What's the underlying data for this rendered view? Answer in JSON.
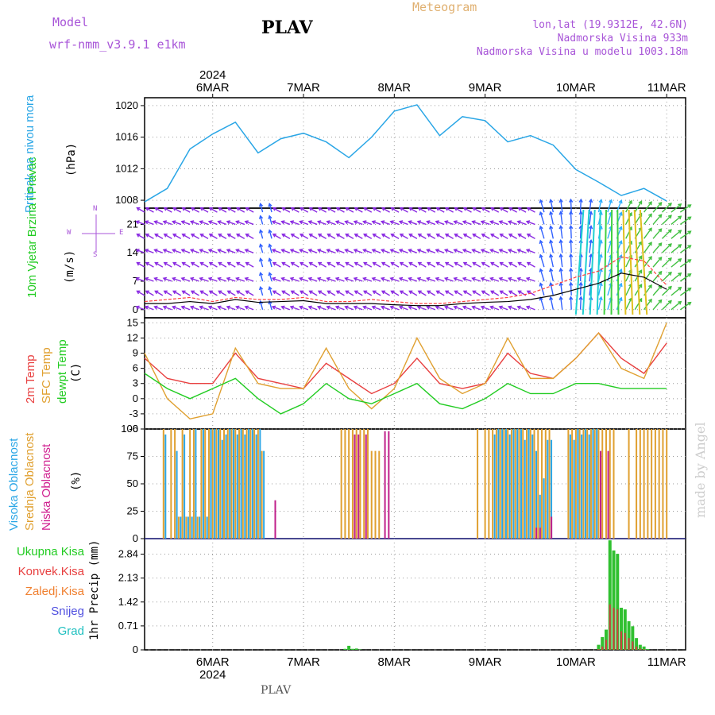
{
  "header": {
    "model_label": "Model",
    "model_name": "wrf-nmm_v3.9.1 e1km",
    "station": "PLAV",
    "product": "Meteogram",
    "coords": "lon,lat (19.9312E, 42.6N)",
    "elevation": "Nadmorska Visina 933m",
    "model_elevation": "Nadmorska Visina u modelu 1003.18m"
  },
  "x_axis": {
    "year": "2024",
    "dates": [
      "6MAR",
      "7MAR",
      "8MAR",
      "9MAR",
      "10MAR",
      "11MAR"
    ]
  },
  "footer": {
    "station": "PLAV",
    "watermark": "made by Angel"
  },
  "colors": {
    "pressure": "#2aa6e6",
    "t2m": "#e84040",
    "sfc": "#e0a030",
    "dew": "#22cc22",
    "wind_arrow": "#8a2be2"
  },
  "chart_data": [
    {
      "type": "line",
      "panel": "pressure",
      "ylabel": "Pritisak na nivou mora",
      "unit": "(hPa)",
      "yticks": [
        "1008",
        "1012",
        "1016",
        "1020"
      ],
      "ylim": [
        1007,
        1021
      ],
      "x_hours": [
        0,
        6,
        12,
        18,
        24,
        30,
        36,
        42,
        48,
        54,
        60,
        66,
        72,
        78,
        84,
        90,
        96,
        102,
        108,
        114,
        120,
        126,
        132,
        138
      ],
      "series": [
        {
          "values": [
            1007.8,
            1009.5,
            1014.5,
            1016.4,
            1017.9,
            1014.0,
            1015.8,
            1016.5,
            1015.4,
            1013.4,
            1016.0,
            1019.3,
            1020.1,
            1016.2,
            1018.6,
            1018.1,
            1015.4,
            1016.2,
            1015.0,
            1011.9,
            1010.3,
            1008.6,
            1009.5,
            1007.9
          ]
        }
      ]
    },
    {
      "type": "line",
      "panel": "wind",
      "ylabel": "10m Vjetar Brzina i Pravac",
      "unit": "(m/s)",
      "compass": {
        "n": "N",
        "s": "S",
        "w": "W",
        "e": "E"
      },
      "yticks": [
        "0",
        "7",
        "14",
        "21"
      ],
      "ylim": [
        -2,
        25
      ],
      "x_hours": [
        0,
        6,
        12,
        18,
        24,
        30,
        36,
        42,
        48,
        54,
        60,
        66,
        72,
        78,
        84,
        90,
        96,
        102,
        108,
        114,
        120,
        126,
        132,
        138
      ],
      "series": [
        {
          "name": "speed",
          "values": [
            1.5,
            1.5,
            2.0,
            1.5,
            2.5,
            1.8,
            2.0,
            2.2,
            1.5,
            1.5,
            1.5,
            1.2,
            1.0,
            1.0,
            1.5,
            1.8,
            2.0,
            2.5,
            3.5,
            5.0,
            6.5,
            9.0,
            8.0,
            5.0
          ]
        },
        {
          "name": "gust",
          "values": [
            2.0,
            2.5,
            3.0,
            2.0,
            3.0,
            2.5,
            2.5,
            3.0,
            2.0,
            2.0,
            2.5,
            2.0,
            1.5,
            1.5,
            2.0,
            2.5,
            3.0,
            4.0,
            6.0,
            8.0,
            9.5,
            13.0,
            12.0,
            6.0
          ]
        }
      ]
    },
    {
      "type": "line",
      "panel": "temperature",
      "ylabels": [
        "2m Temp",
        "SFC Temp",
        "dewpt Temp"
      ],
      "unit": "(C)",
      "yticks": [
        "-6",
        "-3",
        "0",
        "3",
        "6",
        "9",
        "12",
        "15"
      ],
      "ylim": [
        -6,
        16
      ],
      "x_hours": [
        0,
        6,
        12,
        18,
        24,
        30,
        36,
        42,
        48,
        54,
        60,
        66,
        72,
        78,
        84,
        90,
        96,
        102,
        108,
        114,
        120,
        126,
        132,
        138
      ],
      "series": [
        {
          "name": "2m Temp",
          "values": [
            8,
            4,
            3,
            3,
            9,
            4,
            3,
            2,
            7,
            4,
            1,
            3,
            8,
            3,
            2,
            3,
            9,
            5,
            4,
            8,
            13,
            8,
            5,
            11
          ]
        },
        {
          "name": "SFC Temp",
          "values": [
            9,
            0,
            -4,
            -3,
            10,
            3,
            2,
            2,
            10,
            2,
            -2,
            2,
            12,
            4,
            1,
            3,
            12,
            4,
            4,
            8,
            13,
            6,
            4,
            15
          ]
        },
        {
          "name": "dewpt Temp",
          "values": [
            5,
            2,
            0,
            2,
            4,
            0,
            -3,
            -1,
            3,
            0,
            -1,
            1,
            3,
            -1,
            -2,
            0,
            3,
            1,
            1,
            3,
            3,
            2,
            2,
            2
          ]
        }
      ]
    },
    {
      "type": "bar",
      "panel": "clouds",
      "ylabels": [
        "Visoka Oblacnost",
        "Srednja Oblacnost",
        "Niska Oblacnost"
      ],
      "unit": "(%)",
      "yticks": [
        "0",
        "25",
        "50",
        "75",
        "100"
      ],
      "ylim": [
        0,
        100
      ],
      "x_hours": [
        2,
        4,
        5,
        7,
        8,
        9,
        10,
        11,
        12,
        13,
        14,
        15,
        16,
        17,
        18,
        19,
        20,
        21,
        22,
        23,
        24,
        25,
        26,
        27,
        28,
        29,
        30,
        31,
        34,
        35,
        52,
        53,
        54,
        55,
        56,
        57,
        58,
        59,
        60,
        61,
        62,
        64,
        65,
        72,
        73,
        81,
        88,
        90,
        91,
        92,
        93,
        94,
        95,
        96,
        97,
        98,
        99,
        100,
        101,
        102,
        103,
        104,
        105,
        106,
        107,
        108,
        112,
        113,
        114,
        115,
        116,
        117,
        118,
        119,
        120,
        121,
        122,
        123,
        124,
        127,
        128,
        130,
        131,
        132,
        133,
        134,
        135,
        136,
        137,
        138
      ],
      "series": [
        {
          "name": "Srednja Oblacnost",
          "values": [
            0,
            0,
            100,
            100,
            100,
            20,
            100,
            20,
            100,
            100,
            20,
            100,
            100,
            100,
            100,
            100,
            100,
            100,
            100,
            100,
            100,
            100,
            100,
            100,
            100,
            100,
            100,
            80,
            0,
            0,
            100,
            100,
            100,
            100,
            100,
            100,
            100,
            100,
            80,
            80,
            80,
            0,
            0,
            0,
            0,
            0,
            100,
            100,
            100,
            100,
            100,
            100,
            100,
            100,
            100,
            100,
            100,
            100,
            100,
            100,
            100,
            100,
            100,
            100,
            100,
            0,
            100,
            100,
            100,
            100,
            100,
            100,
            100,
            100,
            100,
            100,
            100,
            100,
            100,
            0,
            100,
            100,
            100,
            100,
            100,
            100,
            100,
            100,
            100,
            100
          ]
        },
        {
          "name": "Visoka Oblacnost",
          "values": [
            0,
            0,
            95,
            0,
            80,
            20,
            95,
            20,
            20,
            100,
            20,
            100,
            20,
            100,
            100,
            100,
            90,
            95,
            100,
            100,
            95,
            100,
            95,
            100,
            100,
            95,
            100,
            80,
            0,
            0,
            0,
            0,
            0,
            0,
            0,
            0,
            0,
            0,
            0,
            0,
            0,
            0,
            0,
            0,
            0,
            0,
            0,
            0,
            0,
            95,
            100,
            100,
            100,
            95,
            100,
            100,
            100,
            90,
            100,
            95,
            80,
            40,
            55,
            90,
            90,
            0,
            95,
            90,
            100,
            95,
            100,
            95,
            100,
            100,
            0,
            0,
            0,
            0,
            0,
            0,
            0,
            0,
            0,
            0,
            0,
            0,
            0,
            0,
            0,
            0
          ]
        },
        {
          "name": "Niska Oblacnost",
          "values": [
            0,
            0,
            0,
            0,
            0,
            0,
            0,
            0,
            0,
            0,
            0,
            0,
            0,
            0,
            0,
            0,
            0,
            0,
            0,
            0,
            0,
            0,
            0,
            0,
            0,
            0,
            0,
            0,
            0,
            35,
            0,
            0,
            0,
            0,
            95,
            95,
            0,
            95,
            0,
            0,
            0,
            98,
            98,
            0,
            0,
            0,
            0,
            0,
            0,
            0,
            0,
            0,
            0,
            0,
            0,
            0,
            0,
            0,
            0,
            0,
            0,
            10,
            10,
            0,
            0,
            20,
            0,
            0,
            0,
            0,
            0,
            0,
            0,
            0,
            0,
            80,
            0,
            80,
            0,
            0,
            0,
            0,
            0,
            0,
            0,
            0,
            0,
            0,
            0,
            0
          ]
        }
      ]
    },
    {
      "type": "bar",
      "panel": "precipitation",
      "ylabels": [
        "Ukupna Kisa",
        "Konvek.Kisa",
        "Zaledj.Kisa",
        "Snijeg",
        "Grad"
      ],
      "unit": "1hr Precip (mm)",
      "yticks": [
        "0",
        "0.71",
        "1.42",
        "2.13",
        "2.84"
      ],
      "ylim": [
        0,
        3.3
      ],
      "x_hours": [
        53,
        54,
        55,
        56,
        57,
        120,
        121,
        122,
        123,
        124,
        125,
        126,
        127,
        128,
        129,
        130,
        131,
        132,
        133
      ],
      "series": [
        {
          "name": "Ukupna Kisa",
          "values": [
            0.03,
            0.12,
            0.03,
            0.04,
            0.01,
            0.15,
            0.38,
            0.6,
            3.25,
            2.95,
            2.85,
            1.25,
            1.2,
            0.85,
            0.7,
            0.35,
            0.15,
            0.1,
            0.02
          ]
        },
        {
          "name": "Konvek.Kisa",
          "values": [
            0,
            0,
            0,
            0,
            0,
            0.02,
            0.1,
            0.3,
            1.35,
            1.25,
            1.2,
            0.55,
            0.5,
            0.35,
            0.25,
            0.1,
            0.04,
            0.02,
            0
          ]
        }
      ]
    }
  ]
}
